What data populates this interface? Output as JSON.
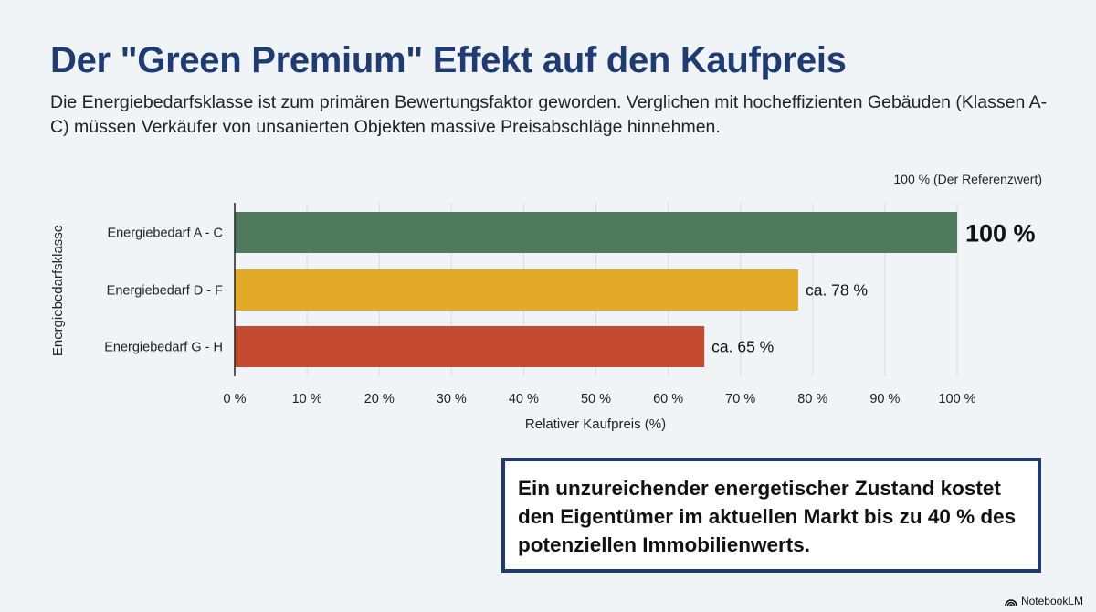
{
  "header": {
    "title": "Der \"Green Premium\" Effekt auf den Kaufpreis",
    "subtitle": "Die Energiebedarfsklasse ist zum primären Bewertungsfaktor geworden. Verglichen mit hocheffizienten Gebäuden (Klassen A-C) müssen Verkäufer von unsanierten Objekten massive Preisabschläge hinnehmen."
  },
  "chart_data": {
    "type": "bar",
    "orientation": "horizontal",
    "categories": [
      "Energiebedarf A - C",
      "Energiebedarf D - F",
      "Energiebedarf G - H"
    ],
    "values": [
      100,
      78,
      65
    ],
    "data_labels": [
      "100 %",
      "ca. 78 %",
      "ca. 65 %"
    ],
    "colors": [
      "#4f7b5c",
      "#e3aa29",
      "#c44a31"
    ],
    "xlabel": "Relativer Kaufpreis (%)",
    "ylabel": "Energiebedarfsklasse",
    "xlim": [
      0,
      100
    ],
    "xticks": [
      0,
      10,
      20,
      30,
      40,
      50,
      60,
      70,
      80,
      90,
      100
    ],
    "xtick_labels": [
      "0 %",
      "10 %",
      "20 %",
      "30 %",
      "40 %",
      "50 %",
      "60 %",
      "70 %",
      "80 %",
      "90 %",
      "100 %"
    ],
    "annotation": "100 % (Der Referenzwert)",
    "grid": "vertical"
  },
  "callout": {
    "text": "Ein unzureichender energetischer Zustand kostet den Eigentümer im aktuellen Markt bis zu 40 % des potenziellen Immobilienwerts."
  },
  "brand": {
    "label": "NotebookLM",
    "icon": "notebooklm-logo-icon"
  }
}
